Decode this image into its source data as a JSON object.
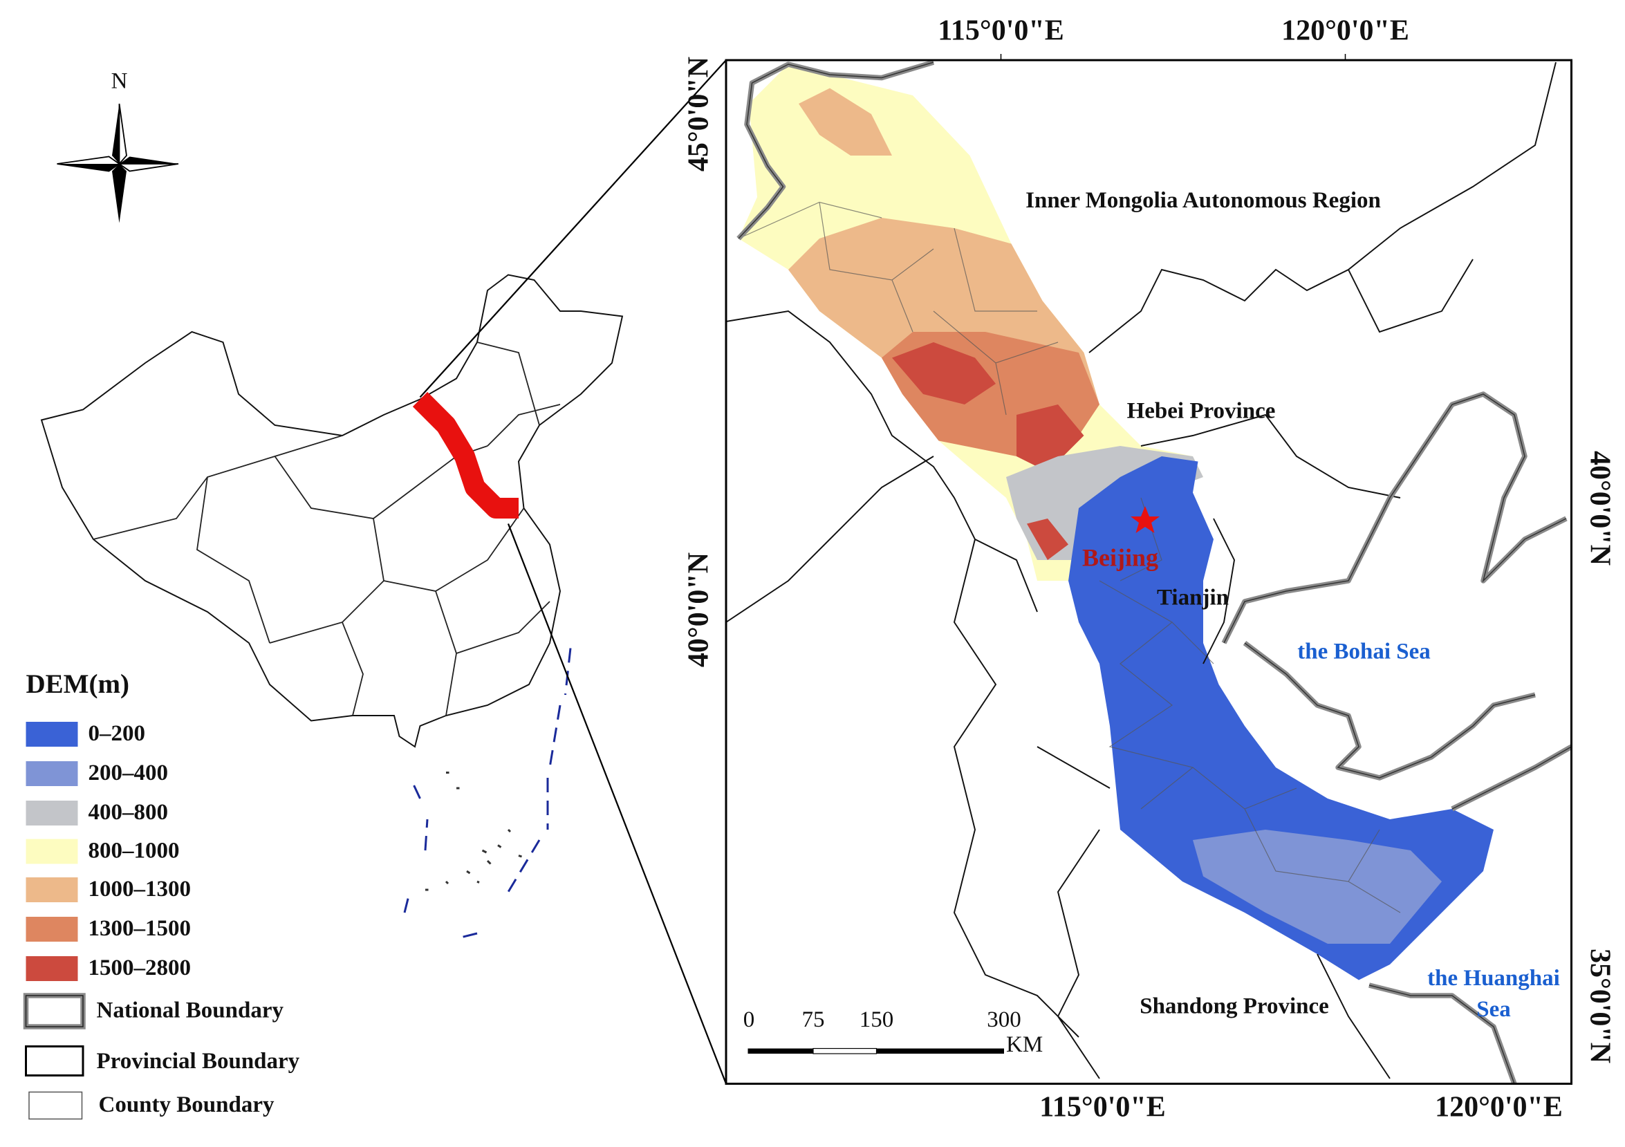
{
  "compass": {
    "label": "N"
  },
  "legend": {
    "title": "DEM(m)",
    "items": [
      {
        "label": "0–200",
        "color": "#3a62d6"
      },
      {
        "label": "200–400",
        "color": "#7f94d6"
      },
      {
        "label": "400–800",
        "color": "#c3c5c9"
      },
      {
        "label": "800–1000",
        "color": "#fdfcc0"
      },
      {
        "label": "1000–1300",
        "color": "#edb98a"
      },
      {
        "label": "1300–1500",
        "color": "#de8660"
      },
      {
        "label": "1500–2800",
        "color": "#cc4a3e"
      }
    ],
    "boundaries": [
      "National Boundary",
      "Provincial Boundary",
      "County Boundary"
    ]
  },
  "map_labels": {
    "inner_mongolia": "Inner Mongolia Autonomous Region",
    "hebei": "Hebei Province",
    "beijing": "Beijing",
    "tianjin": "Tianjin",
    "bohai_sea": "the Bohai Sea",
    "huanghai_sea": [
      "the Huanghai",
      "Sea"
    ],
    "shandong": "Shandong Province"
  },
  "coordinates": {
    "top": [
      "115°0'0\"E",
      "120°0'0\"E"
    ],
    "bottom": [
      "115°0'0\"E",
      "120°0'0\"E"
    ],
    "left": [
      "45°0'0\"N",
      "40°0'0\"N"
    ],
    "right": [
      "40°0'0\"N",
      "35°0'0\"N"
    ]
  },
  "scale_bar": {
    "ticks": [
      0,
      75,
      150,
      300
    ],
    "unit": "KM"
  }
}
